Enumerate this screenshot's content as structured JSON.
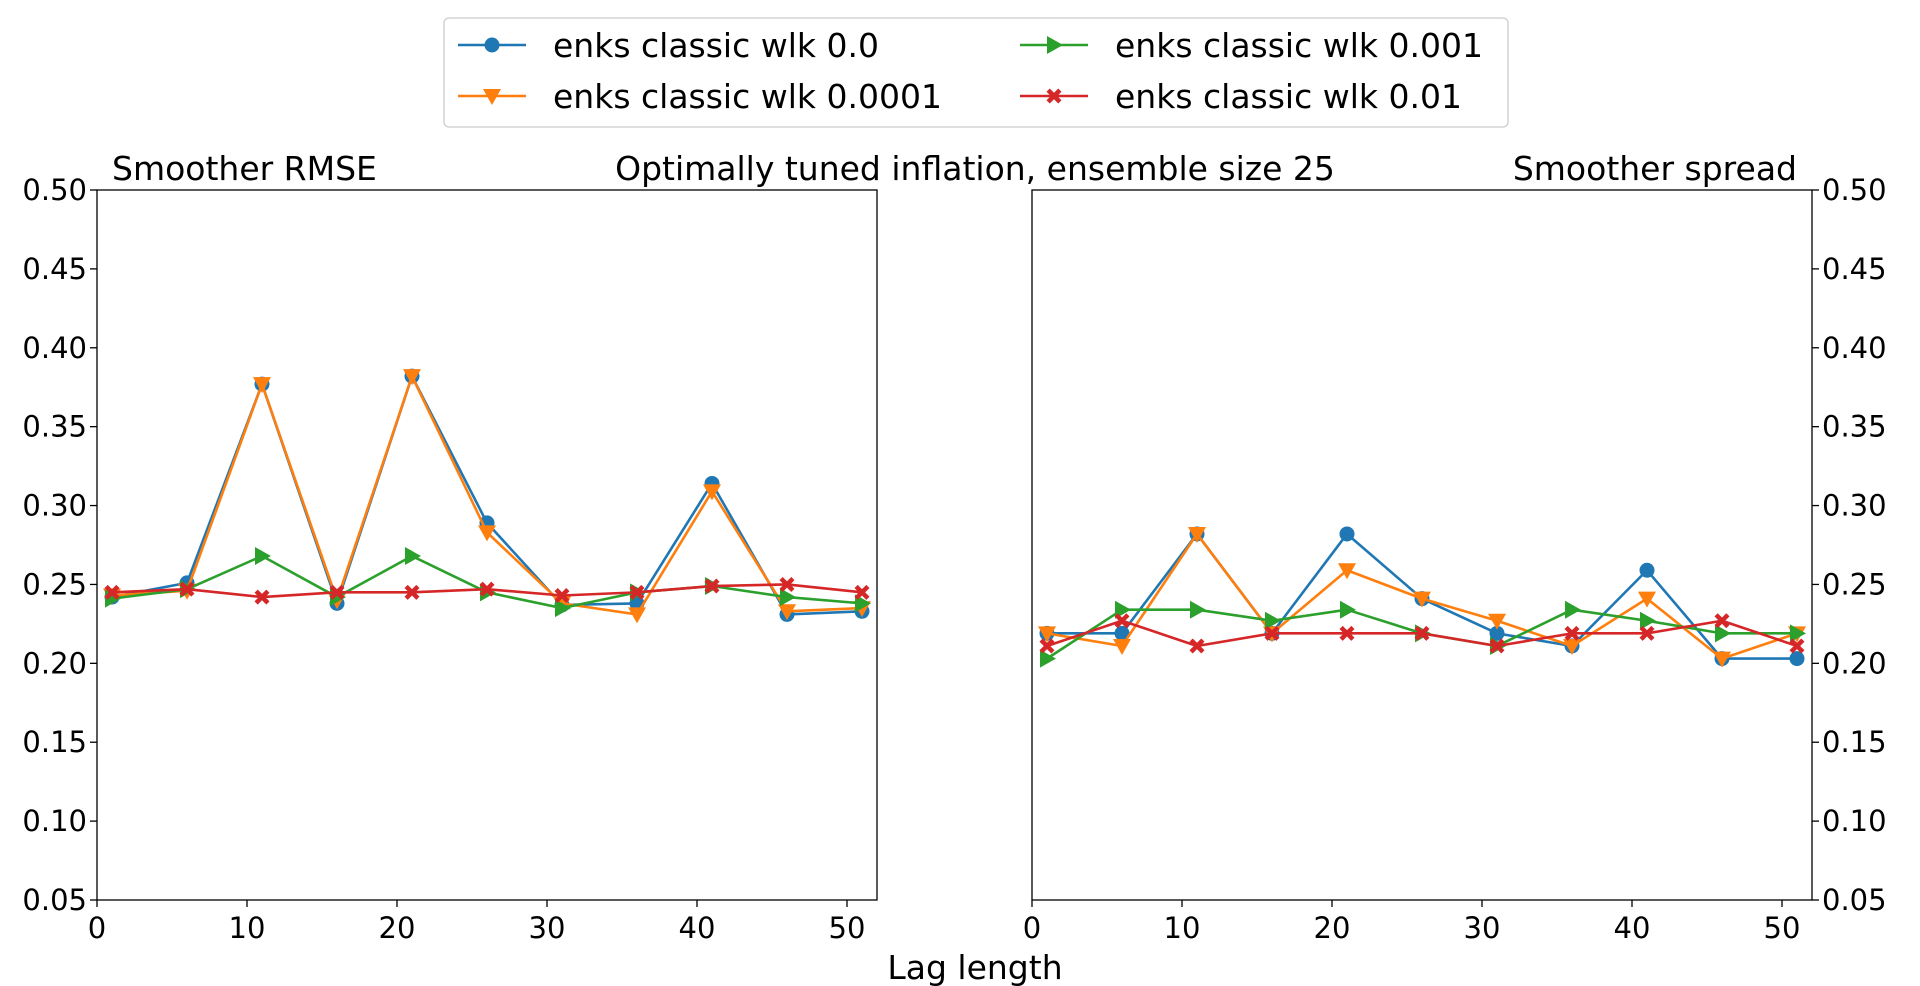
{
  "figure": {
    "title": "Optimally tuned inflation, ensemble size 25",
    "xlabel": "Lag length",
    "legend_placement": "top-center",
    "legend_columns": 2
  },
  "legend": [
    {
      "name": "enks classic wlk 0.0",
      "color": "#1f77b4",
      "marker": "circle"
    },
    {
      "name": "enks classic wlk 0.0001",
      "color": "#ff7f0e",
      "marker": "triangle-down"
    },
    {
      "name": "enks classic wlk 0.001",
      "color": "#2ca02c",
      "marker": "triangle-right"
    },
    {
      "name": "enks classic wlk 0.01",
      "color": "#d62728",
      "marker": "x-filled"
    }
  ],
  "chart_data": [
    {
      "type": "line",
      "title": "Smoother RMSE",
      "title_align": "left",
      "y_axis_side": "left",
      "xlim": [
        0,
        52
      ],
      "ylim": [
        0.05,
        0.5
      ],
      "xticks": [
        0,
        10,
        20,
        30,
        40,
        50
      ],
      "yticks": [
        0.05,
        0.1,
        0.15,
        0.2,
        0.25,
        0.3,
        0.35,
        0.4,
        0.45,
        0.5
      ],
      "ytick_labels": [
        "0.05",
        "0.10",
        "0.15",
        "0.20",
        "0.25",
        "0.30",
        "0.35",
        "0.40",
        "0.45",
        "0.50"
      ],
      "grid": false,
      "x": [
        1,
        6,
        11,
        16,
        21,
        26,
        31,
        36,
        41,
        46,
        51
      ],
      "series": [
        {
          "name": "enks classic wlk 0.0",
          "values": [
            0.242,
            0.251,
            0.377,
            0.238,
            0.382,
            0.289,
            0.237,
            0.238,
            0.314,
            0.231,
            0.233
          ]
        },
        {
          "name": "enks classic wlk 0.0001",
          "values": [
            0.243,
            0.246,
            0.377,
            0.24,
            0.382,
            0.283,
            0.238,
            0.231,
            0.309,
            0.233,
            0.235
          ]
        },
        {
          "name": "enks classic wlk 0.001",
          "values": [
            0.241,
            0.247,
            0.268,
            0.242,
            0.268,
            0.245,
            0.235,
            0.245,
            0.249,
            0.242,
            0.238
          ]
        },
        {
          "name": "enks classic wlk 0.01",
          "values": [
            0.245,
            0.247,
            0.242,
            0.245,
            0.245,
            0.247,
            0.243,
            0.245,
            0.249,
            0.25,
            0.245
          ]
        }
      ]
    },
    {
      "type": "line",
      "title": "Smoother spread",
      "title_align": "right",
      "y_axis_side": "right",
      "xlim": [
        0,
        52
      ],
      "ylim": [
        0.05,
        0.5
      ],
      "xticks": [
        0,
        10,
        20,
        30,
        40,
        50
      ],
      "yticks": [
        0.05,
        0.1,
        0.15,
        0.2,
        0.25,
        0.3,
        0.35,
        0.4,
        0.45,
        0.5
      ],
      "ytick_labels": [
        "0.05",
        "0.10",
        "0.15",
        "0.20",
        "0.25",
        "0.30",
        "0.35",
        "0.40",
        "0.45",
        "0.50"
      ],
      "grid": false,
      "x": [
        1,
        6,
        11,
        16,
        21,
        26,
        31,
        36,
        41,
        46,
        51
      ],
      "series": [
        {
          "name": "enks classic wlk 0.0",
          "values": [
            0.219,
            0.219,
            0.282,
            0.219,
            0.282,
            0.241,
            0.219,
            0.211,
            0.259,
            0.203,
            0.203
          ]
        },
        {
          "name": "enks classic wlk 0.0001",
          "values": [
            0.219,
            0.211,
            0.282,
            0.219,
            0.259,
            0.241,
            0.227,
            0.211,
            0.241,
            0.203,
            0.219
          ]
        },
        {
          "name": "enks classic wlk 0.001",
          "values": [
            0.203,
            0.234,
            0.234,
            0.227,
            0.234,
            0.219,
            0.211,
            0.234,
            0.227,
            0.219,
            0.219
          ]
        },
        {
          "name": "enks classic wlk 0.01",
          "values": [
            0.211,
            0.227,
            0.211,
            0.219,
            0.219,
            0.219,
            0.211,
            0.219,
            0.219,
            0.227,
            0.211
          ]
        }
      ]
    }
  ]
}
